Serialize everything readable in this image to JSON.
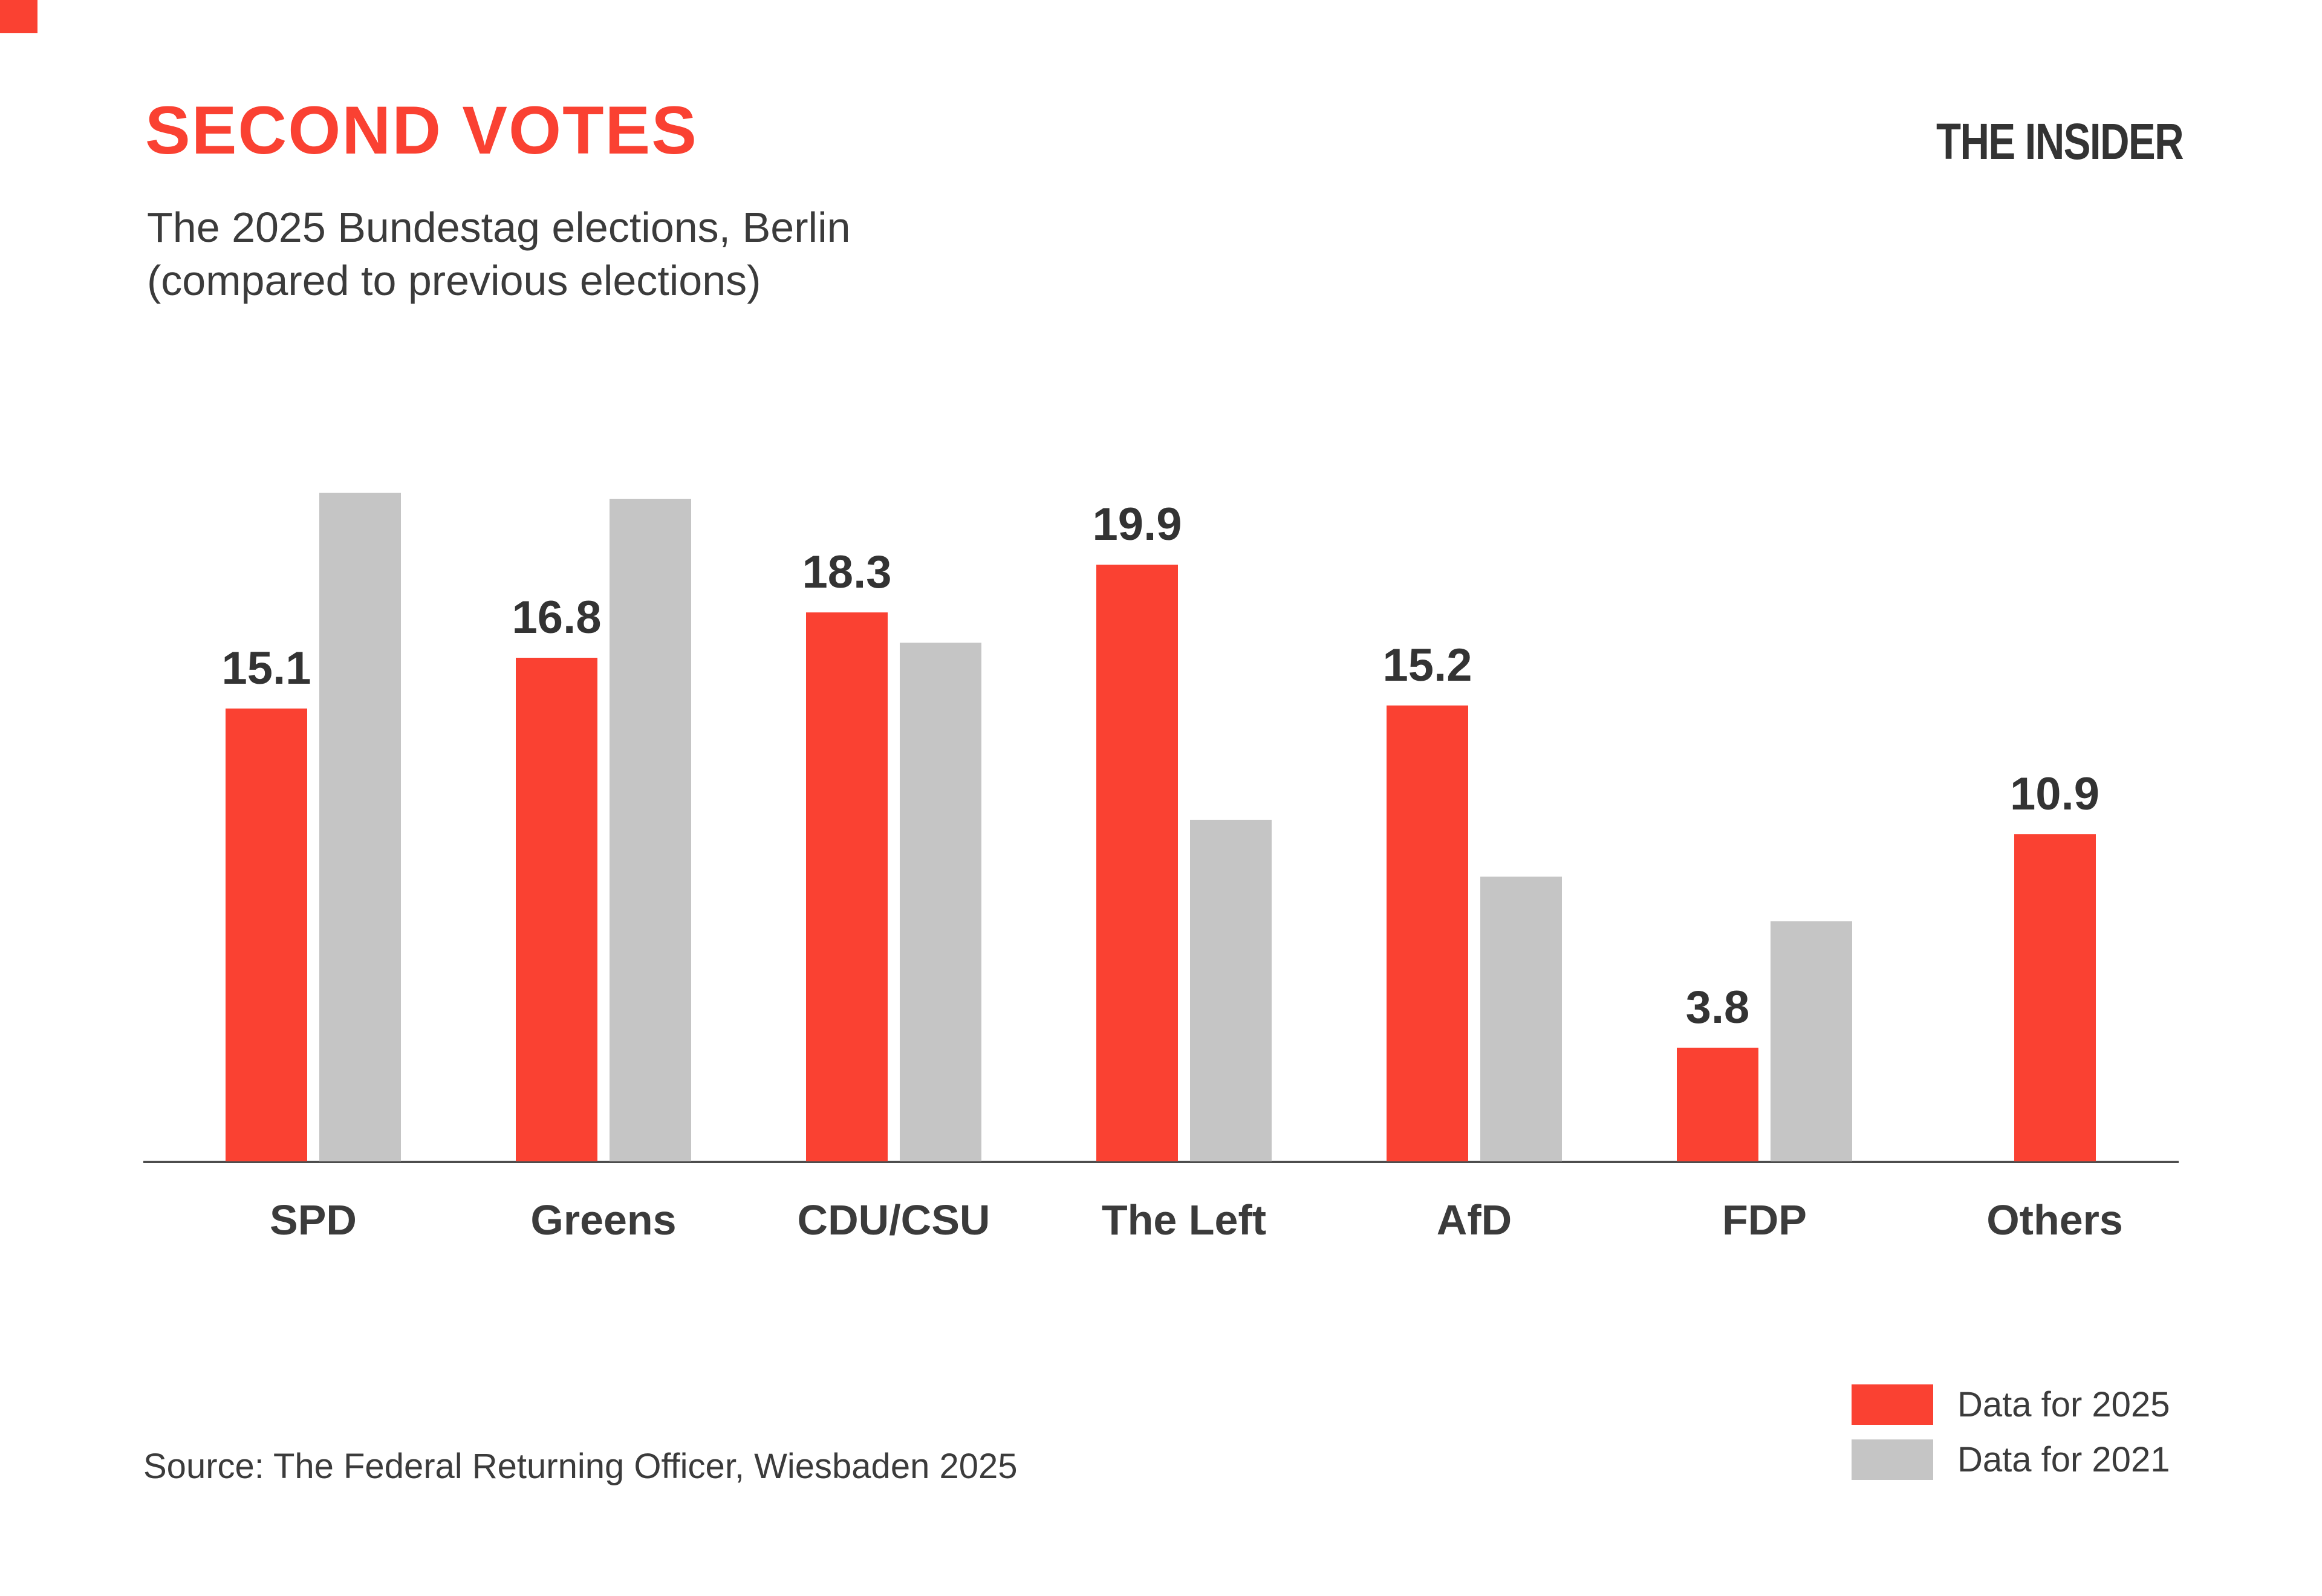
{
  "page": {
    "title": "SECOND VOTES",
    "subtitle_line1": "The 2025 Bundestag elections, Berlin",
    "subtitle_line2": "(compared to previous elections)",
    "brand": "THE INSIDER",
    "source": "Source: The Federal Returning Officer, Wiesbaden 2025"
  },
  "colors": {
    "red": "#fa4132",
    "gray": "#c5c5c5",
    "ink": "#3b3b3b",
    "axis": "#4d4d4d"
  },
  "legend": [
    {
      "label": "Data for 2025",
      "color": "#fa4132"
    },
    {
      "label": "Data for 2021",
      "color": "#c5c5c5"
    }
  ],
  "chart_data": {
    "type": "bar",
    "title": "SECOND VOTES",
    "subtitle": "The 2025 Bundestag elections, Berlin (compared to previous elections)",
    "categories": [
      "SPD",
      "Greens",
      "CDU/CSU",
      "The Left",
      "AfD",
      "FDP",
      "Others"
    ],
    "series": [
      {
        "name": "Data for 2025",
        "color": "#fa4132",
        "values": [
          15.1,
          16.8,
          18.3,
          19.9,
          15.2,
          3.8,
          10.9
        ],
        "data_labels_shown": true
      },
      {
        "name": "Data for 2021",
        "color": "#c5c5c5",
        "values": [
          22.3,
          22.1,
          17.3,
          11.4,
          9.5,
          8.0,
          null
        ],
        "data_labels_shown": false,
        "note": "bars unlabeled in chart; values estimated from bar heights"
      }
    ],
    "ylim": [
      0,
      24
    ],
    "grid": false,
    "legend_position": "bottom-right",
    "xlabel": "",
    "ylabel": ""
  }
}
